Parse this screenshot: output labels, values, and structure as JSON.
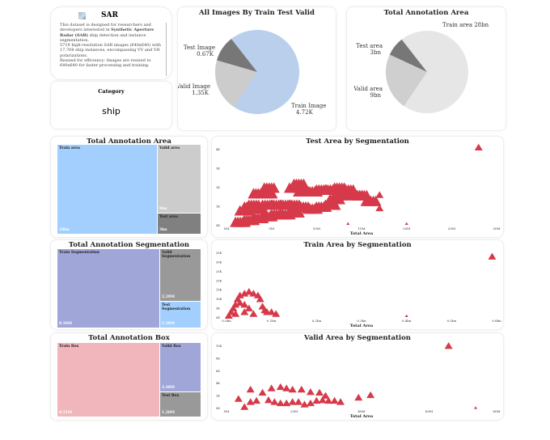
{
  "info": {
    "title": "SAR",
    "icon": "satellite-image-icon",
    "desc_1": "This dataset is designed for researchers and developers interested in ",
    "desc_bold": "Synthetic Aperture Radar (SAR)",
    "desc_2": " ship detection and instance segmentation.",
    "desc_3": "5719 high-resolution SAR images (640x640) with 17,708 ship instances, encompassing VV and VH polarizations.",
    "desc_4": "Resized for efficiency: Images are resized to 640x640 for faster processing and training."
  },
  "category": {
    "label": "Category",
    "value": "ship"
  },
  "chart_data": [
    {
      "type": "pie",
      "title": "All Images By Train Test Valid",
      "labels": [
        "Train Image",
        "Valid Image",
        "Test Image"
      ],
      "values": [
        4.72,
        1.35,
        0.67
      ],
      "value_labels": [
        "4.72K",
        "1.35K",
        "0.67K"
      ],
      "colors": [
        "#b9cfec",
        "#cccccc",
        "#777777"
      ]
    },
    {
      "type": "pie",
      "title": "Total Annotation Area",
      "labels": [
        "Train area",
        "Valid area",
        "Test area"
      ],
      "values": [
        28,
        9,
        3
      ],
      "value_labels": [
        "28bn",
        "9bn",
        "3bn"
      ],
      "colors": [
        "#e6e6e6",
        "#cfcfcf",
        "#777777"
      ]
    },
    {
      "type": "treemap",
      "title": "Total Annotation Area",
      "labels": [
        "Train area",
        "Valid area",
        "Test area"
      ],
      "value_labels": [
        "28bn",
        "9bn",
        "3bn"
      ],
      "colors": [
        "#a3cfff",
        "#cccccc",
        "#808080"
      ]
    },
    {
      "type": "treemap",
      "title": "Total Annotation Segmentation",
      "labels": [
        "Train Segmentation",
        "Valid Segmentation",
        "Test Segmentation"
      ],
      "value_labels": [
        "8.50M",
        "2.29M",
        "1.20M"
      ],
      "colors": [
        "#a0a6d8",
        "#999999",
        "#a3cfff"
      ]
    },
    {
      "type": "treemap",
      "title": "Total Annotation Box",
      "labels": [
        "Train Box",
        "Valid Box",
        "Test Box"
      ],
      "value_labels": [
        "8.51M",
        "2.48M",
        "1.20M"
      ],
      "colors": [
        "#f0b6bc",
        "#a0a6d8",
        "#999999"
      ]
    },
    {
      "type": "scatter",
      "title": "Test Area by Segmentation",
      "xlabel": "Total Area",
      "color": "#d63a4a",
      "xticks": [
        "0M",
        "5M",
        "10M",
        "15M",
        "20M",
        "25M",
        "30M"
      ],
      "xlim": [
        0,
        30
      ],
      "yticks": [
        "0K",
        "1K",
        "2K",
        "3K",
        "4K"
      ],
      "ylim": [
        0,
        4
      ],
      "points": [
        [
          1,
          0.1
        ],
        [
          2,
          0.2
        ],
        [
          3,
          0.3
        ],
        [
          4,
          0.4
        ],
        [
          5,
          0.5
        ],
        [
          6,
          0.5
        ],
        [
          7,
          0.6
        ],
        [
          1.5,
          0.7
        ],
        [
          2,
          0.9
        ],
        [
          2.5,
          1
        ],
        [
          3,
          0.8
        ],
        [
          4,
          1
        ],
        [
          5,
          1
        ],
        [
          6,
          1
        ],
        [
          7,
          1
        ],
        [
          8,
          0.9
        ],
        [
          9,
          0.8
        ],
        [
          10,
          0.9
        ],
        [
          11,
          1
        ],
        [
          11.5,
          1.3
        ],
        [
          12,
          1.5
        ],
        [
          12.5,
          1.6
        ],
        [
          13,
          1.6
        ],
        [
          14,
          1.5
        ],
        [
          3,
          1.6
        ],
        [
          4,
          1.6
        ],
        [
          4.2,
          1.9
        ],
        [
          7,
          1.9
        ],
        [
          7.5,
          2.1
        ],
        [
          8,
          1.7
        ],
        [
          9,
          1.7
        ],
        [
          10,
          1.8
        ],
        [
          11,
          1.8
        ],
        [
          12,
          1.9
        ],
        [
          13,
          1.8
        ],
        [
          14.5,
          1.5
        ],
        [
          15.5,
          1.2
        ],
        [
          17,
          1.6
        ],
        [
          17,
          0.9
        ],
        [
          13.5,
          0.1
        ],
        [
          20,
          0.1
        ],
        [
          28,
          4.1
        ]
      ]
    },
    {
      "type": "scatter",
      "title": "Train Area by Segmentation",
      "xlabel": "Total Area",
      "color": "#d63a4a",
      "xticks": [
        "0.0bn",
        "0.1bn",
        "0.2bn",
        "0.3bn",
        "0.4bn",
        "0.5bn",
        "0.6bn"
      ],
      "xlim": [
        0,
        0.6
      ],
      "yticks": [
        "0K",
        "5K",
        "10K",
        "15K",
        "20K",
        "25K",
        "30K",
        "35K"
      ],
      "ylim": [
        0,
        35
      ],
      "points": [
        [
          0.005,
          1
        ],
        [
          0.01,
          3
        ],
        [
          0.015,
          5
        ],
        [
          0.02,
          7
        ],
        [
          0.03,
          8
        ],
        [
          0.04,
          7
        ],
        [
          0.05,
          5
        ],
        [
          0.02,
          2
        ],
        [
          0.04,
          3
        ],
        [
          0.06,
          2
        ],
        [
          0.025,
          10
        ],
        [
          0.03,
          12
        ],
        [
          0.04,
          13
        ],
        [
          0.05,
          14
        ],
        [
          0.06,
          13
        ],
        [
          0.07,
          12
        ],
        [
          0.075,
          10
        ],
        [
          0.08,
          6
        ],
        [
          0.085,
          4
        ],
        [
          0.09,
          3
        ],
        [
          0.1,
          3
        ],
        [
          0.11,
          2
        ],
        [
          0.4,
          1
        ],
        [
          0.59,
          33
        ]
      ]
    },
    {
      "type": "scatter",
      "title": "Valid Area by Segmentation",
      "xlabel": "Total Area",
      "color": "#d63a4a",
      "xticks": [
        "0M",
        "20M",
        "40M",
        "60M",
        "80M"
      ],
      "xlim": [
        0,
        90
      ],
      "yticks": [
        "0K",
        "2K",
        "4K",
        "6K",
        "8K",
        "10K"
      ],
      "ylim": [
        0,
        10
      ],
      "points": [
        [
          4,
          1.5
        ],
        [
          6,
          0.2
        ],
        [
          8,
          3
        ],
        [
          12,
          2.5
        ],
        [
          8,
          1
        ],
        [
          10,
          1.2
        ],
        [
          14,
          1.3
        ],
        [
          16,
          1
        ],
        [
          18,
          0.8
        ],
        [
          20,
          0.8
        ],
        [
          22,
          1
        ],
        [
          24,
          1
        ],
        [
          26,
          0.6
        ],
        [
          28,
          0.8
        ],
        [
          30,
          1.2
        ],
        [
          32,
          1.3
        ],
        [
          34,
          1.2
        ],
        [
          36,
          1.2
        ],
        [
          38,
          1
        ],
        [
          15,
          3.2
        ],
        [
          18,
          3.4
        ],
        [
          20,
          3.2
        ],
        [
          22,
          3
        ],
        [
          25,
          3
        ],
        [
          28,
          2.6
        ],
        [
          31,
          2.5
        ],
        [
          33,
          2
        ],
        [
          44,
          1.7
        ],
        [
          48,
          2.1
        ],
        [
          74,
          10
        ],
        [
          83,
          0.1
        ]
      ]
    }
  ]
}
